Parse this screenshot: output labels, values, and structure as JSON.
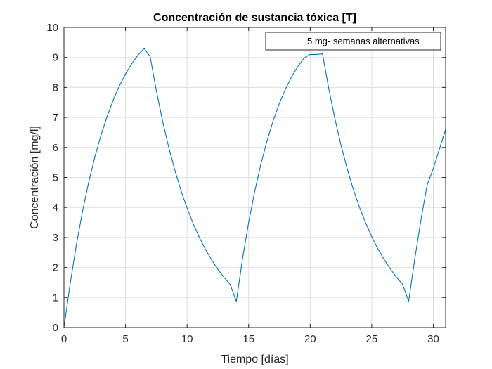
{
  "chart_data": {
    "type": "line",
    "title": "Concentración de sustancia tóxica [T]",
    "xlabel": "Tiempo [días]",
    "ylabel": "Concentración [mg/l]",
    "xlim": [
      0,
      31
    ],
    "ylim": [
      0,
      10
    ],
    "xticks": [
      0,
      5,
      10,
      15,
      20,
      25,
      30
    ],
    "yticks": [
      0,
      1,
      2,
      3,
      4,
      5,
      6,
      7,
      8,
      9,
      10
    ],
    "grid": true,
    "legend_position": "top-right",
    "series": [
      {
        "name": "5 mg- semanas alternativas",
        "color": "#0072BD",
        "x": [
          0,
          0.5,
          1,
          1.5,
          2,
          2.5,
          3,
          3.5,
          4,
          4.5,
          5,
          5.5,
          6,
          6.5,
          7,
          7.5,
          8,
          8.5,
          9,
          9.5,
          10,
          10.5,
          11,
          11.5,
          12,
          12.5,
          13,
          13.5,
          14,
          14.5,
          15,
          15.5,
          16,
          16.5,
          17,
          17.5,
          18,
          18.5,
          19,
          19.5,
          20,
          20.5,
          21,
          21.5,
          22,
          22.5,
          23,
          23.5,
          24,
          24.5,
          25,
          25.5,
          26,
          26.5,
          27,
          27.5,
          28,
          28.5,
          29,
          29.5,
          30,
          30.5,
          31
        ],
        "y": [
          0,
          1.45,
          2.74,
          3.86,
          4.83,
          5.67,
          6.4,
          7.03,
          7.58,
          8.05,
          8.45,
          8.79,
          9.07,
          9.3,
          9.03,
          7.9,
          6.9,
          6.02,
          5.25,
          4.57,
          3.98,
          3.46,
          3.0,
          2.6,
          2.25,
          1.94,
          1.67,
          1.44,
          0.87,
          2.28,
          3.5,
          4.55,
          5.45,
          6.23,
          6.9,
          7.47,
          7.95,
          8.36,
          8.7,
          8.98,
          9.1,
          9.1,
          9.12,
          7.98,
          6.97,
          6.08,
          5.3,
          4.61,
          4.01,
          3.49,
          3.03,
          2.62,
          2.27,
          1.96,
          1.68,
          1.44,
          0.88,
          2.3,
          3.6,
          4.75,
          5.3,
          5.95,
          6.6
        ]
      }
    ]
  }
}
